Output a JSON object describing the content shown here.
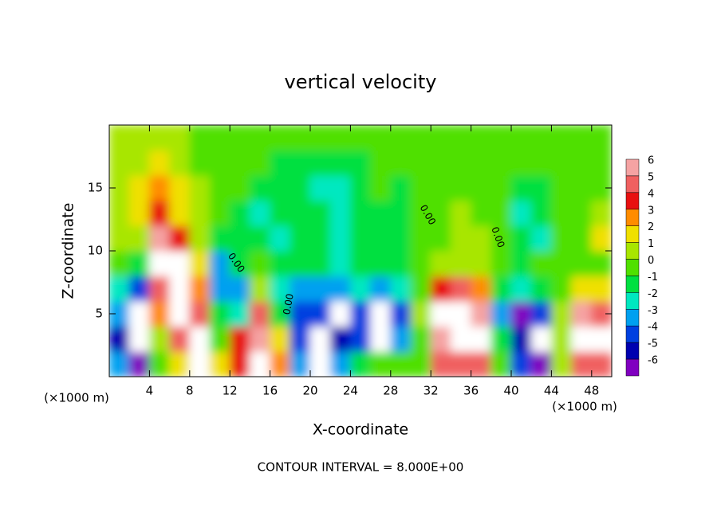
{
  "chart_data": {
    "type": "heatmap",
    "title": "vertical velocity",
    "xlabel": "X-coordinate",
    "ylabel": "Z-coordinate",
    "x_unit_label": "(×1000 m)",
    "footer": "CONTOUR INTERVAL = 8.000E+00",
    "contour_label": "0.00",
    "xlim": [
      0,
      50
    ],
    "ylim": [
      0,
      20
    ],
    "xticks": [
      4,
      8,
      12,
      16,
      20,
      24,
      28,
      32,
      36,
      40,
      44,
      48
    ],
    "yticks": [
      5,
      10,
      15
    ],
    "x": [
      1,
      3,
      5,
      7,
      9,
      11,
      13,
      15,
      17,
      19,
      21,
      23,
      25,
      27,
      29,
      31,
      33,
      35,
      37,
      39,
      41,
      43,
      45,
      47,
      49
    ],
    "y": [
      1,
      3,
      5,
      7,
      9,
      11,
      13,
      15,
      17,
      19
    ],
    "z": [
      [
        -3,
        -6,
        0,
        2,
        8,
        2,
        4,
        7,
        3,
        -3,
        -7,
        -3,
        -1,
        0,
        0,
        0,
        5,
        5,
        5,
        0,
        -4,
        -6,
        1,
        5,
        5
      ],
      [
        -5,
        -7,
        1,
        5,
        7,
        0,
        4,
        6,
        2,
        -4,
        -7,
        -5,
        -4,
        -7,
        -3,
        0,
        6,
        8,
        7,
        -1,
        -5,
        -7,
        1,
        7,
        7
      ],
      [
        -3,
        -7,
        3,
        7,
        5,
        -1,
        -2,
        5,
        -1,
        -4,
        -4,
        -7,
        -4,
        -7,
        -4,
        1,
        7,
        8,
        6,
        -3,
        -6,
        -4,
        1,
        6,
        5
      ],
      [
        -2,
        -4,
        5,
        8,
        3,
        -3,
        -3,
        1,
        -2,
        -3,
        -3,
        -3,
        -2,
        -3,
        -2,
        0,
        4,
        5,
        3,
        -1,
        -2,
        -1,
        0,
        2,
        2
      ],
      [
        0,
        -1,
        7,
        8,
        2,
        -3,
        -1,
        0,
        -1,
        -1,
        -1,
        -2,
        -1,
        -1,
        -1,
        0,
        1,
        1,
        1,
        0,
        -1,
        0,
        0,
        0,
        0
      ],
      [
        1,
        1,
        6,
        4,
        1,
        -1,
        -1,
        -1,
        -2,
        -1,
        -1,
        -2,
        -1,
        -1,
        -1,
        0,
        0,
        1,
        1,
        0,
        -1,
        -2,
        0,
        0,
        2
      ],
      [
        1,
        2,
        4,
        2,
        1,
        0,
        -1,
        -2,
        -1,
        -1,
        -1,
        -2,
        -1,
        -1,
        -1,
        0,
        0,
        1,
        0,
        0,
        -2,
        -1,
        0,
        0,
        1
      ],
      [
        1,
        2,
        3,
        2,
        1,
        0,
        0,
        -1,
        -1,
        -1,
        -2,
        -2,
        -1,
        0,
        -1,
        0,
        0,
        0,
        0,
        0,
        -1,
        -1,
        0,
        0,
        0
      ],
      [
        1,
        1,
        2,
        1,
        0,
        0,
        0,
        0,
        -1,
        -1,
        -1,
        -1,
        -1,
        0,
        0,
        0,
        0,
        0,
        0,
        0,
        0,
        0,
        0,
        0,
        0
      ],
      [
        1,
        1,
        1,
        1,
        0,
        0,
        0,
        0,
        0,
        0,
        0,
        0,
        0,
        0,
        0,
        0,
        0,
        0,
        0,
        0,
        0,
        0,
        0,
        0,
        0
      ]
    ],
    "levels": [
      6,
      5,
      4,
      3,
      2,
      1,
      0,
      -1,
      -2,
      -3,
      -4,
      -5,
      -6
    ],
    "colors": [
      "#f5a3a3",
      "#f06060",
      "#e81010",
      "#ff8c00",
      "#f0e000",
      "#a8e600",
      "#50e000",
      "#00e040",
      "#00e8c0",
      "#00a0f0",
      "#0040e0",
      "#0000b0",
      "#8000c0"
    ],
    "out_of_range_color": "#ffffff"
  }
}
